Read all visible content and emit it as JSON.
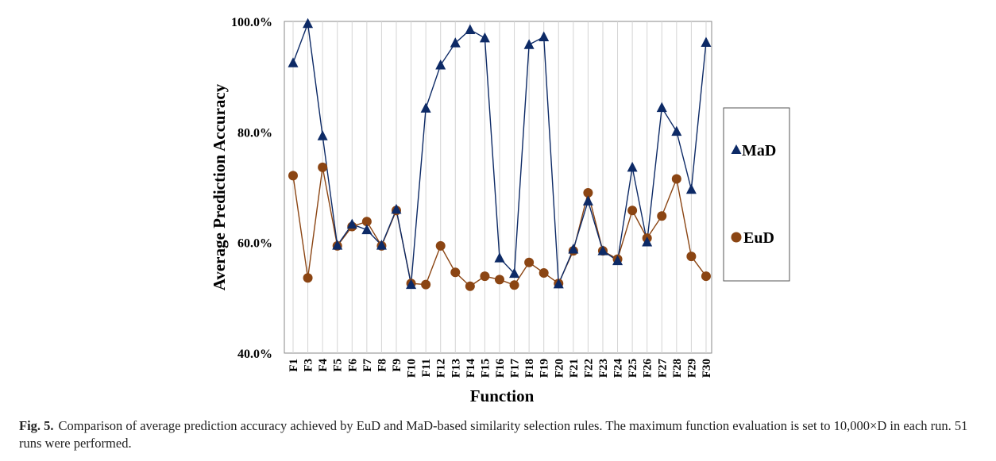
{
  "chart_data": {
    "type": "line",
    "xlabel": "Function",
    "ylabel": "Average Prediction Accuracy",
    "ylim": [
      40,
      100
    ],
    "yticks": [
      "40.0%",
      "60.0%",
      "80.0%",
      "100.0%"
    ],
    "ytick_values": [
      40,
      60,
      80,
      100
    ],
    "grid": "vertical",
    "legend_position": "right",
    "categories": [
      "F1",
      "F3",
      "F4",
      "F5",
      "F6",
      "F7",
      "F8",
      "F9",
      "F10",
      "F11",
      "F12",
      "F13",
      "F14",
      "F15",
      "F16",
      "F17",
      "F18",
      "F19",
      "F20",
      "F21",
      "F22",
      "F23",
      "F24",
      "F25",
      "F26",
      "F27",
      "F28",
      "F29",
      "F30"
    ],
    "series": [
      {
        "name": "MaD",
        "marker": "triangle",
        "color": "#0d2a66",
        "values": [
          92.5,
          99.6,
          79.3,
          59.5,
          63.3,
          62.3,
          59.5,
          66.0,
          52.4,
          84.3,
          92.1,
          96.1,
          98.5,
          97.0,
          57.2,
          54.4,
          95.8,
          97.2,
          52.5,
          58.8,
          67.5,
          58.5,
          56.7,
          73.6,
          60.1,
          84.4,
          80.1,
          69.6,
          96.2
        ]
      },
      {
        "name": "EuD",
        "marker": "circle",
        "color": "#8b4513",
        "values": [
          72.1,
          53.6,
          73.6,
          59.4,
          62.9,
          63.8,
          59.4,
          65.8,
          52.6,
          52.4,
          59.4,
          54.6,
          52.1,
          53.9,
          53.3,
          52.3,
          56.4,
          54.5,
          52.6,
          58.5,
          69.0,
          58.5,
          57.0,
          65.8,
          60.8,
          64.8,
          71.5,
          57.5,
          53.9
        ]
      }
    ]
  },
  "caption": {
    "label": "Fig. 5.",
    "text": "Comparison of average prediction accuracy achieved by EuD and MaD-based similarity selection rules. The maximum function evaluation is set to 10,000×D in each run. 51 runs were performed."
  }
}
